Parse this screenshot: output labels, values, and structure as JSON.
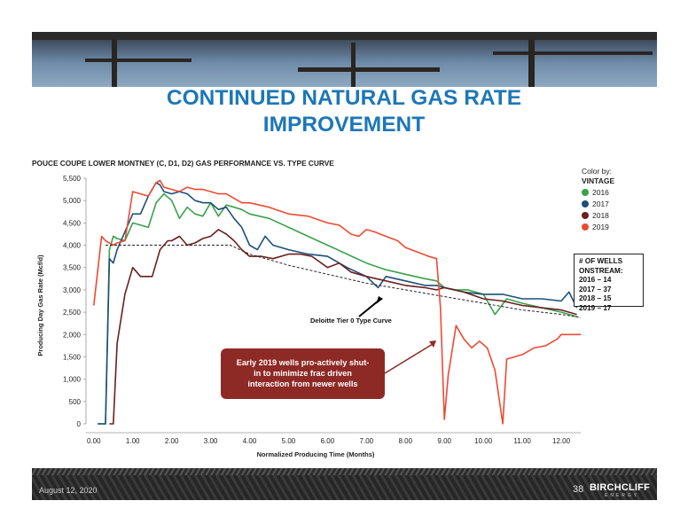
{
  "slide": {
    "title_line1": "CONTINUED NATURAL GAS RATE",
    "title_line2": "IMPROVEMENT",
    "date": "August 12, 2020",
    "page_number": "38",
    "logo_name": "BIRCHCLIFF",
    "logo_sub": "ENERGY"
  },
  "colors": {
    "title": "#1c77b8",
    "y2016": "#3aa24a",
    "y2017": "#1d4f7a",
    "y2018": "#6b1f1f",
    "y2019": "#ee4a33",
    "type_curve": "#222222",
    "callout": "#8e2a26"
  },
  "legend": {
    "color_by": "Color by:",
    "vintage": "VINTAGE",
    "items": [
      {
        "label": "2016",
        "color": "#3aa24a"
      },
      {
        "label": "2017",
        "color": "#1d4f7a"
      },
      {
        "label": "2018",
        "color": "#6b1f1f"
      },
      {
        "label": "2019",
        "color": "#ee4a33"
      }
    ]
  },
  "wells_box": {
    "header1": "# OF WELLS",
    "header2": "ONSTREAM:",
    "lines": [
      "2016 – 14",
      "2017 – 37",
      "2018 – 15",
      "2019 – 17"
    ]
  },
  "callout": {
    "text_line1": "Early 2019 wells pro-actively shut-",
    "text_line2": "in to minimize frac driven",
    "text_line3": "interaction from newer wells"
  },
  "chart_data": {
    "type": "line",
    "title": "POUCE COUPE LOWER MONTNEY (C, D1, D2) GAS PERFORMANCE VS. TYPE CURVE",
    "xlabel": "Normalized Producing Time (Months)",
    "ylabel": "Producing Day Gas Rate (Mcf/d)",
    "xlim": [
      -0.2,
      12.5
    ],
    "ylim": [
      0,
      5500
    ],
    "x_ticks": [
      0,
      1,
      2,
      3,
      4,
      5,
      6,
      7,
      8,
      9,
      10,
      11,
      12
    ],
    "x_tick_labels": [
      "0.00",
      "1.00",
      "2.00",
      "3.00",
      "4.00",
      "5.00",
      "6.00",
      "7.00",
      "8.00",
      "9.00",
      "10.00",
      "11.00",
      "12.00"
    ],
    "y_ticks": [
      0,
      500,
      1000,
      1500,
      2000,
      2500,
      3000,
      3500,
      4000,
      4500,
      5000,
      5500
    ],
    "y_tick_labels": [
      "0",
      "500",
      "1,000",
      "1,500",
      "2,000",
      "2,500",
      "3,000",
      "3,500",
      "4,000",
      "4,500",
      "5,000",
      "5,500"
    ],
    "legend_position": "right",
    "series": [
      {
        "name": "2016",
        "x": [
          0.1,
          0.3,
          0.4,
          0.5,
          0.6,
          0.8,
          1.0,
          1.2,
          1.4,
          1.6,
          1.8,
          2.0,
          2.2,
          2.4,
          2.6,
          2.8,
          3.0,
          3.2,
          3.4,
          3.6,
          3.8,
          4.0,
          4.5,
          5.0,
          5.5,
          6.0,
          6.5,
          7.0,
          7.5,
          8.0,
          8.5,
          8.8,
          9.0,
          9.3,
          9.6,
          10.0,
          10.3,
          10.6,
          11.0,
          11.5,
          12.0,
          12.4
        ],
        "y": [
          0,
          0,
          3900,
          4200,
          4150,
          4100,
          4500,
          4450,
          4400,
          4950,
          5150,
          5000,
          4600,
          4850,
          4700,
          4650,
          4950,
          4650,
          4900,
          4850,
          4800,
          4700,
          4600,
          4400,
          4200,
          4000,
          3800,
          3600,
          3450,
          3350,
          3250,
          3200,
          3050,
          3000,
          3000,
          2900,
          2450,
          2800,
          2700,
          2600,
          2500,
          2400
        ]
      },
      {
        "name": "2017",
        "x": [
          0.1,
          0.3,
          0.4,
          0.5,
          0.6,
          0.8,
          1.0,
          1.2,
          1.4,
          1.6,
          1.7,
          1.8,
          2.0,
          2.2,
          2.4,
          2.6,
          2.8,
          3.0,
          3.2,
          3.4,
          3.6,
          3.8,
          4.0,
          4.2,
          4.4,
          4.6,
          5.0,
          5.5,
          6.0,
          6.5,
          7.0,
          7.3,
          7.5,
          8.0,
          8.5,
          8.8,
          9.0,
          9.5,
          10.0,
          10.5,
          11.0,
          11.5,
          12.0,
          12.2,
          12.4
        ],
        "y": [
          0,
          0,
          3700,
          3600,
          3900,
          4300,
          4700,
          4700,
          5100,
          5400,
          5350,
          5200,
          5150,
          5200,
          5150,
          5000,
          4950,
          4950,
          4800,
          4850,
          4600,
          4400,
          4000,
          3900,
          4200,
          4000,
          3900,
          3800,
          3750,
          3500,
          3300,
          3050,
          3300,
          3200,
          3100,
          3100,
          3050,
          2950,
          2900,
          2900,
          2800,
          2800,
          2750,
          2950,
          2600
        ]
      },
      {
        "name": "2018",
        "x": [
          0.4,
          0.5,
          0.6,
          0.8,
          1.0,
          1.2,
          1.5,
          1.7,
          1.9,
          2.0,
          2.2,
          2.4,
          2.6,
          2.8,
          3.0,
          3.2,
          3.4,
          3.6,
          3.8,
          4.0,
          4.3,
          4.6,
          5.0,
          5.3,
          5.6,
          6.0,
          6.3,
          6.6,
          7.0,
          7.5,
          8.0,
          8.5,
          8.8,
          9.0,
          9.5,
          10.0,
          10.5,
          11.0,
          11.5,
          12.0,
          12.4
        ],
        "y": [
          0,
          0,
          1800,
          2900,
          3500,
          3300,
          3300,
          3900,
          4100,
          4100,
          4200,
          4000,
          4050,
          4150,
          4200,
          4350,
          4250,
          4100,
          3900,
          3750,
          3750,
          3700,
          3800,
          3800,
          3750,
          3500,
          3600,
          3400,
          3300,
          3200,
          3100,
          3050,
          3000,
          3050,
          2950,
          2800,
          2750,
          2650,
          2600,
          2550,
          2450
        ]
      },
      {
        "name": "2019",
        "x": [
          0.0,
          0.2,
          0.3,
          0.5,
          0.6,
          0.8,
          1.0,
          1.2,
          1.4,
          1.6,
          1.7,
          1.8,
          2.0,
          2.2,
          2.4,
          2.6,
          2.8,
          3.0,
          3.2,
          3.4,
          3.6,
          3.8,
          4.0,
          4.5,
          5.0,
          5.5,
          6.0,
          6.3,
          6.6,
          6.8,
          7.0,
          7.2,
          7.5,
          7.8,
          8.0,
          8.3,
          8.6,
          8.8,
          8.9,
          9.0,
          9.1,
          9.3,
          9.5,
          9.7,
          9.9,
          10.1,
          10.3,
          10.5,
          10.6,
          10.8,
          11.0,
          11.3,
          11.6,
          11.9,
          12.0,
          12.2,
          12.5
        ],
        "y": [
          2650,
          4200,
          4100,
          4000,
          4050,
          4100,
          5200,
          5150,
          5100,
          5400,
          5450,
          5300,
          5250,
          5200,
          5300,
          5250,
          5250,
          5200,
          5150,
          5150,
          5050,
          4950,
          4950,
          4850,
          4700,
          4650,
          4500,
          4450,
          4250,
          4200,
          4350,
          4300,
          4200,
          4100,
          3950,
          3850,
          3750,
          3700,
          2600,
          100,
          1100,
          2200,
          1900,
          1700,
          1850,
          1700,
          1200,
          0,
          1450,
          1500,
          1550,
          1700,
          1750,
          1900,
          2000,
          2000,
          2000
        ]
      },
      {
        "name": "Deloitte Tier 0 Type Curve",
        "x": [
          0.3,
          1.0,
          2.0,
          3.0,
          3.5,
          4.0,
          5.0,
          6.0,
          7.0,
          8.0,
          9.0,
          10.0,
          11.0,
          12.0,
          12.5
        ],
        "y": [
          4000,
          4000,
          4000,
          4000,
          4000,
          3800,
          3550,
          3350,
          3150,
          3000,
          2850,
          2700,
          2550,
          2450,
          2380
        ]
      }
    ],
    "annotations": [
      {
        "text": "Deloitte Tier 0 Type Curve"
      }
    ]
  }
}
